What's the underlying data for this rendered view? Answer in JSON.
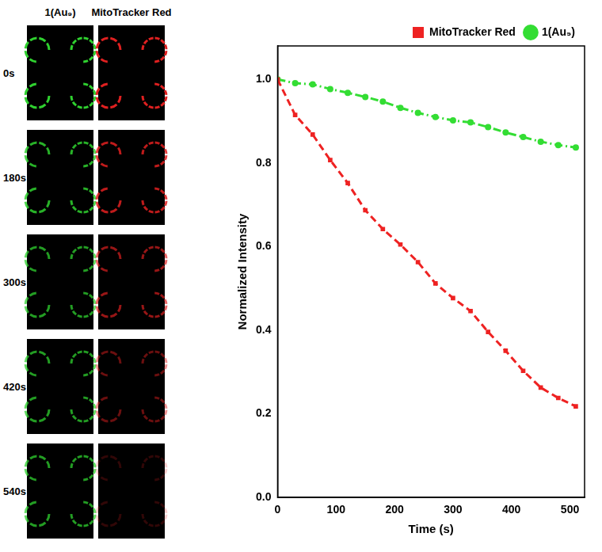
{
  "image_grid": {
    "column_heads": [
      "1(Au₉)",
      "MitoTracker Red"
    ],
    "row_labels": [
      "0s",
      "180s",
      "300s",
      "420s",
      "540s"
    ]
  },
  "chart_data": {
    "type": "line",
    "x_label": "Time (s)",
    "y_label": "Normalized Intensity",
    "x": [
      0,
      30,
      60,
      90,
      120,
      150,
      180,
      210,
      240,
      270,
      300,
      330,
      360,
      390,
      420,
      450,
      480,
      510
    ],
    "series": [
      {
        "name": "MitoTracker Red",
        "color": "#ee2222",
        "marker": "square",
        "line_style": "dashed",
        "values": [
          1.0,
          0.915,
          0.868,
          0.807,
          0.752,
          0.687,
          0.642,
          0.605,
          0.563,
          0.512,
          0.477,
          0.446,
          0.396,
          0.351,
          0.303,
          0.263,
          0.238,
          0.218
        ]
      },
      {
        "name": "1(Au₉)",
        "color": "#33dd33",
        "marker": "circle",
        "line_style": "dashdot",
        "values": [
          1.0,
          0.991,
          0.988,
          0.977,
          0.968,
          0.958,
          0.947,
          0.932,
          0.92,
          0.91,
          0.902,
          0.897,
          0.886,
          0.873,
          0.862,
          0.851,
          0.843,
          0.837
        ]
      }
    ],
    "xlim": [
      0,
      525
    ],
    "xticks": [
      0,
      100,
      200,
      300,
      400,
      500
    ],
    "ylim": [
      0,
      1.08
    ],
    "yticks": [
      {
        "value": 0,
        "label": "0.0"
      },
      0.2,
      0.4,
      0.6,
      0.8,
      {
        "value": 1,
        "label": "1.0"
      }
    ],
    "grid": false,
    "legend": "top"
  }
}
